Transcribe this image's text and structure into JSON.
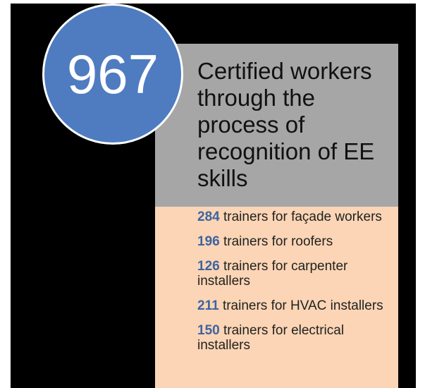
{
  "badge": "967",
  "heading": "Certified workers through the process of recognition of EE skills",
  "items": [
    {
      "count": 284,
      "text": "trainers for façade workers"
    },
    {
      "count": 196,
      "text": "trainers for roofers"
    },
    {
      "count": 126,
      "text": "trainers for carpenter installers"
    },
    {
      "count": 211,
      "text": "trainers for HVAC installers"
    },
    {
      "count": 150,
      "text": "trainers for electrical installers"
    }
  ]
}
